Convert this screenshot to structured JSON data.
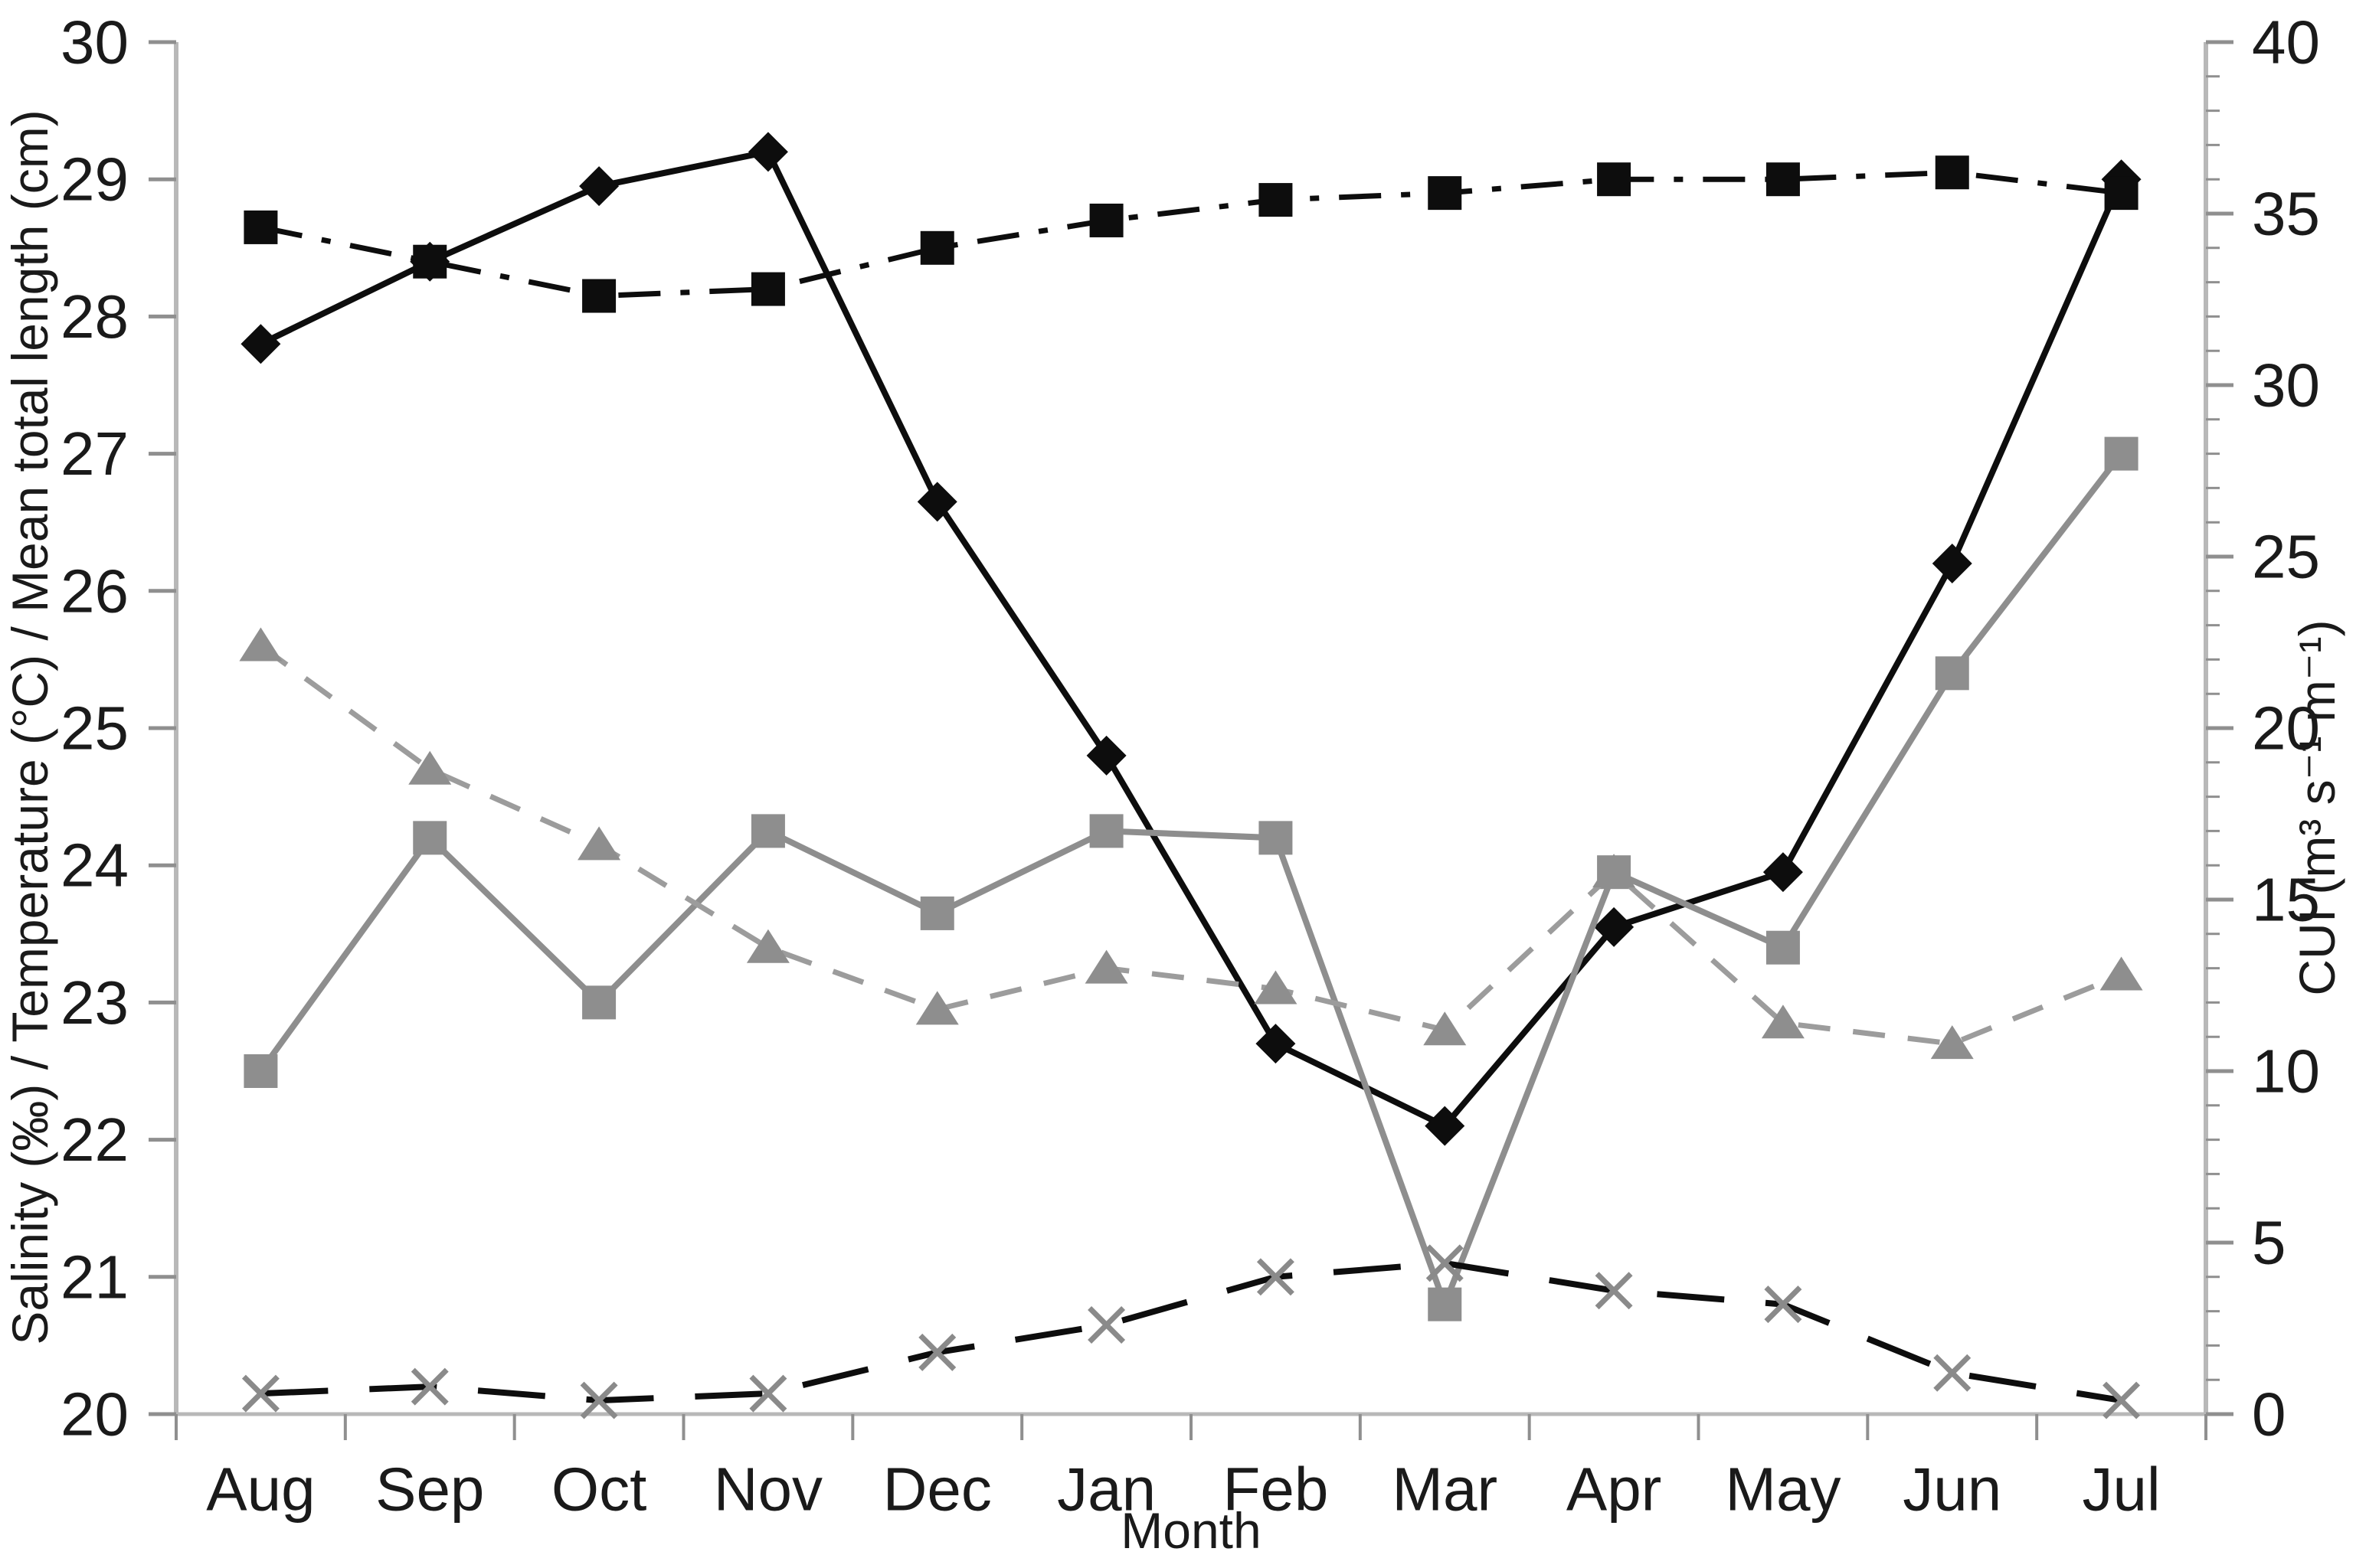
{
  "figure": {
    "x_axis": {
      "label": "Month",
      "categories": [
        "Aug",
        "Sep",
        "Oct",
        "Nov",
        "Dec",
        "Jan",
        "Feb",
        "Mar",
        "Apr",
        "May",
        "Jun",
        "Jul"
      ]
    },
    "y_axis_left": {
      "label": "Salinity (‰) / Temperature (°C) / Mean total length (cm)",
      "min": 20,
      "max": 30,
      "tick_step": 1,
      "ticks": [
        20,
        21,
        22,
        23,
        24,
        25,
        26,
        27,
        28,
        29,
        30
      ]
    },
    "y_axis_right": {
      "label": "CUI (m³ s⁻¹ m⁻¹)",
      "min": 0,
      "max": 40,
      "tick_step": 5,
      "minor_tick_step": 1,
      "ticks": [
        0,
        5,
        10,
        15,
        20,
        25,
        30,
        35,
        40
      ]
    },
    "colors": {
      "black_series": "#0d0d0d",
      "gray_series": "#8e8e8e",
      "gray_dashed_series": "#9c9c9c",
      "x_marker": "#8a8a8a",
      "spine": "#b8b8b8",
      "tick_mark": "#8f8f8f",
      "text": "#1a1a1a",
      "background": "#ffffff"
    }
  },
  "chart_data": {
    "type": "line",
    "title": "",
    "xlabel": "Month",
    "ylabel_left": "Salinity (‰) / Temperature (°C) / Mean total length (cm)",
    "ylabel_right": "CUI (m³ s⁻¹ m⁻¹)",
    "ylim_left": [
      20,
      30
    ],
    "ylim_right": [
      0,
      40
    ],
    "grid": false,
    "legend": "none",
    "categories": [
      "Aug",
      "Sep",
      "Oct",
      "Nov",
      "Dec",
      "Jan",
      "Feb",
      "Mar",
      "Apr",
      "May",
      "Jun",
      "Jul"
    ],
    "series": [
      {
        "name": "solid-black-diamond",
        "axis": "left",
        "line_style": "solid",
        "marker": "diamond",
        "color": "#0d0d0d",
        "values": [
          27.8,
          28.4,
          28.95,
          29.2,
          26.65,
          24.8,
          22.7,
          22.1,
          23.55,
          23.95,
          26.2,
          29.0
        ]
      },
      {
        "name": "dashdot-black-square",
        "axis": "left",
        "line_style": "dashdot",
        "marker": "square",
        "color": "#0d0d0d",
        "values": [
          28.65,
          28.4,
          28.15,
          28.2,
          28.5,
          28.7,
          28.85,
          28.9,
          29.0,
          29.0,
          29.05,
          28.9
        ]
      },
      {
        "name": "solid-gray-square",
        "axis": "left",
        "line_style": "solid",
        "marker": "square",
        "color": "#8e8e8e",
        "values": [
          22.5,
          24.2,
          23.0,
          24.25,
          23.65,
          24.25,
          24.2,
          20.8,
          23.95,
          23.4,
          25.4,
          27.0
        ]
      },
      {
        "name": "dashed-gray-triangle",
        "axis": "left",
        "line_style": "dashed",
        "marker": "triangle",
        "color": "#9c9c9c",
        "marker_color": "#8e8e8e",
        "values": [
          25.6,
          24.7,
          24.15,
          23.4,
          22.95,
          23.25,
          23.1,
          22.8,
          23.95,
          22.85,
          22.7,
          23.2
        ]
      },
      {
        "name": "longdash-black-x",
        "axis": "right",
        "line_style": "longdash",
        "marker": "x",
        "color": "#0d0d0d",
        "marker_color": "#8a8a8a",
        "values": [
          0.6,
          0.8,
          0.4,
          0.6,
          1.8,
          2.6,
          4.0,
          4.4,
          3.6,
          3.2,
          1.2,
          0.4
        ]
      }
    ]
  }
}
